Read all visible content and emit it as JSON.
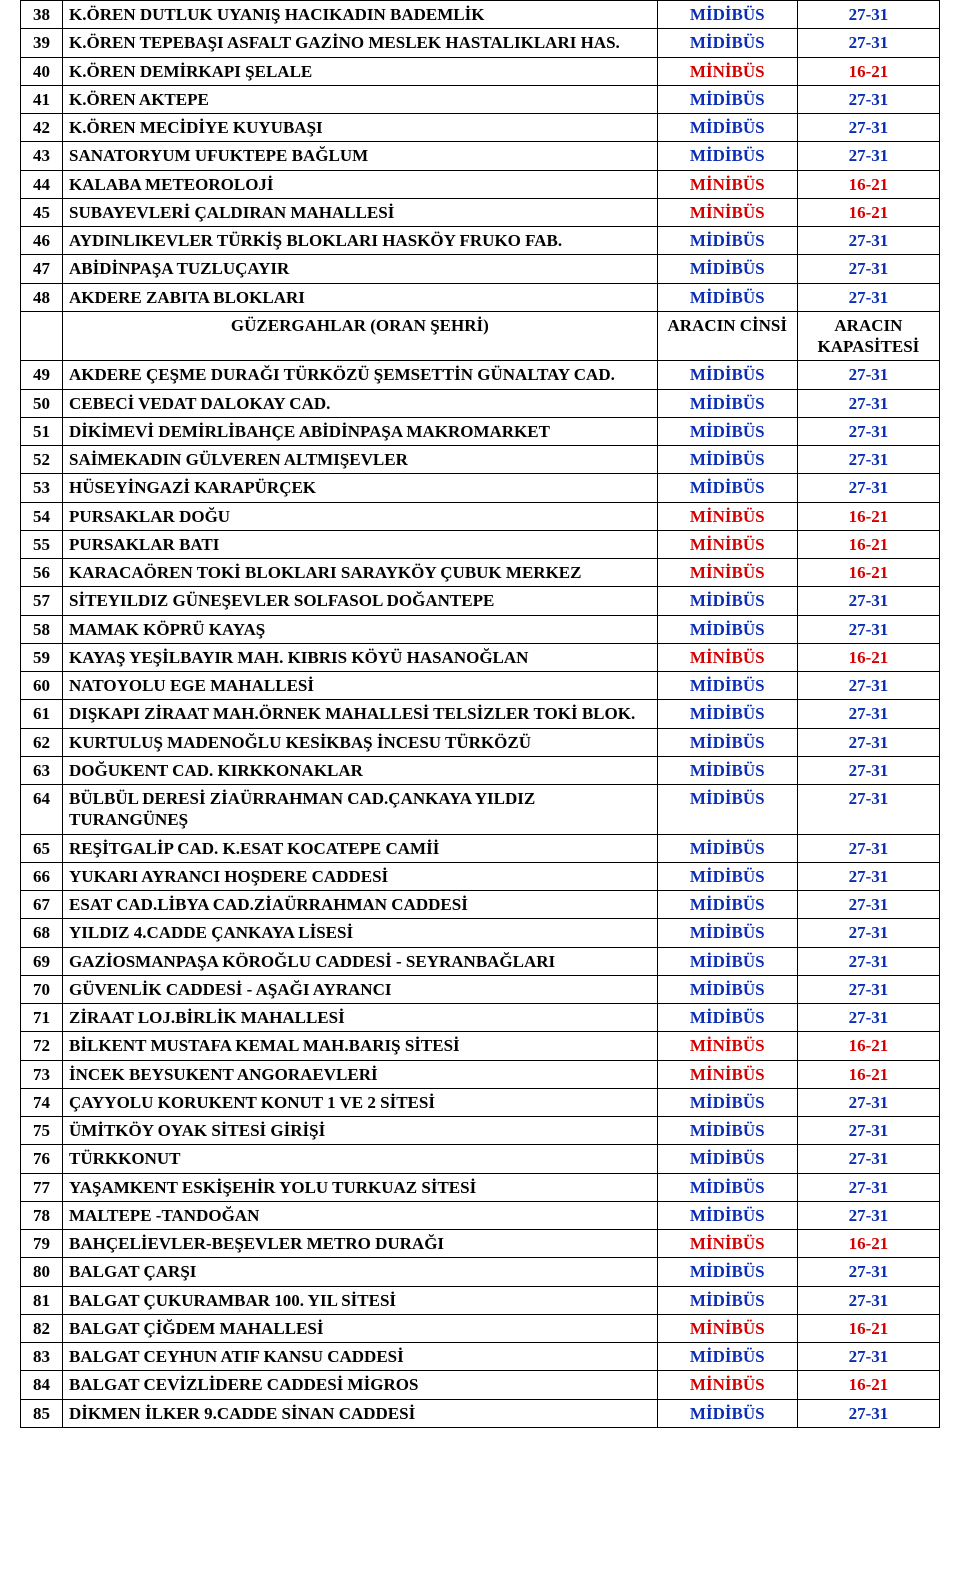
{
  "colors": {
    "border": "#000000",
    "text_black": "#000000",
    "text_blue": "#0a2db3",
    "text_red": "#d30000",
    "background": "#ffffff"
  },
  "typography": {
    "font_family": "Times New Roman",
    "font_size_pt": 13,
    "font_weight": "bold"
  },
  "vehicle_types": {
    "midibus": {
      "label": "MİDİBÜS",
      "capacity": "27-31",
      "color": "#0a2db3"
    },
    "minibus": {
      "label": "MİNİBÜS",
      "capacity": "16-21",
      "color": "#d30000"
    }
  },
  "section_header": {
    "route_header": "GÜZERGAHLAR (ORAN ŞEHRİ)",
    "type_header": "ARACIN CİNSİ",
    "capacity_header": "ARACIN KAPASİTESİ"
  },
  "rows": [
    {
      "num": "38",
      "route": "K.ÖREN DUTLUK UYANIŞ HACIKADIN BADEMLİK",
      "kind": "midibus"
    },
    {
      "num": "39",
      "route": "K.ÖREN TEPEBAŞI ASFALT GAZİNO MESLEK HASTALIKLARI HAS.",
      "kind": "midibus"
    },
    {
      "num": "40",
      "route": "K.ÖREN  DEMİRKAPI ŞELALE",
      "kind": "minibus"
    },
    {
      "num": "41",
      "route": "K.ÖREN AKTEPE",
      "kind": "midibus"
    },
    {
      "num": "42",
      "route": "K.ÖREN MECİDİYE KUYUBAŞI",
      "kind": "midibus"
    },
    {
      "num": "43",
      "route": "SANATORYUM UFUKTEPE BAĞLUM",
      "kind": "midibus"
    },
    {
      "num": "44",
      "route": "KALABA METEOROLOJİ",
      "kind": "minibus"
    },
    {
      "num": "45",
      "route": "SUBAYEVLERİ ÇALDIRAN MAHALLESİ",
      "kind": "minibus"
    },
    {
      "num": "46",
      "route": "AYDINLIKEVLER TÜRKİŞ BLOKLARI HASKÖY FRUKO FAB.",
      "kind": "midibus"
    },
    {
      "num": "47",
      "route": "ABİDİNPAŞA TUZLUÇAYIR",
      "kind": "midibus"
    },
    {
      "num": "48",
      "route": "AKDERE ZABITA BLOKLARI",
      "kind": "midibus"
    },
    {
      "header": true
    },
    {
      "num": "49",
      "route": "AKDERE ÇEŞME DURAĞI TÜRKÖZÜ ŞEMSETTİN GÜNALTAY CAD.",
      "kind": "midibus"
    },
    {
      "num": "50",
      "route": "CEBECİ VEDAT DALOKAY CAD.",
      "kind": "midibus"
    },
    {
      "num": "51",
      "route": "DİKİMEVİ DEMİRLİBAHÇE ABİDİNPAŞA MAKROMARKET",
      "kind": "midibus"
    },
    {
      "num": "52",
      "route": "SAİMEKADIN GÜLVEREN ALTMIŞEVLER",
      "kind": "midibus"
    },
    {
      "num": "53",
      "route": "HÜSEYİNGAZİ KARAPÜRÇEK",
      "kind": "midibus"
    },
    {
      "num": "54",
      "route": "PURSAKLAR DOĞU",
      "kind": "minibus"
    },
    {
      "num": "55",
      "route": "PURSAKLAR BATI",
      "kind": "minibus"
    },
    {
      "num": "56",
      "route": "KARACAÖREN TOKİ BLOKLARI SARAYKÖY ÇUBUK MERKEZ",
      "kind": "minibus"
    },
    {
      "num": "57",
      "route": "SİTEYILDIZ GÜNEŞEVLER SOLFASOL DOĞANTEPE",
      "kind": "midibus"
    },
    {
      "num": "58",
      "route": "MAMAK KÖPRÜ KAYAŞ",
      "kind": "midibus"
    },
    {
      "num": "59",
      "route": "KAYAŞ YEŞİLBAYIR MAH. KIBRIS KÖYÜ HASANOĞLAN",
      "kind": "minibus"
    },
    {
      "num": "60",
      "route": "NATOYOLU EGE MAHALLESİ",
      "kind": "midibus"
    },
    {
      "num": "61",
      "route": "DIŞKAPI ZİRAAT MAH.ÖRNEK MAHALLESİ TELSİZLER TOKİ BLOK.",
      "kind": "midibus"
    },
    {
      "num": "62",
      "route": "KURTULUŞ MADENOĞLU KESİKBAŞ İNCESU TÜRKÖZÜ",
      "kind": "midibus"
    },
    {
      "num": "63",
      "route": "DOĞUKENT CAD. KIRKKONAKLAR",
      "kind": "midibus"
    },
    {
      "num": "64",
      "route": "BÜLBÜL DERESİ ZİAÜRRAHMAN CAD.ÇANKAYA YILDIZ TURANGÜNEŞ",
      "kind": "midibus"
    },
    {
      "num": "65",
      "route": "REŞİTGALİP CAD. K.ESAT KOCATEPE CAMİİ",
      "kind": "midibus"
    },
    {
      "num": "66",
      "route": "YUKARI AYRANCI HOŞDERE CADDESİ",
      "kind": "midibus"
    },
    {
      "num": "67",
      "route": "ESAT CAD.LİBYA CAD.ZİAÜRRAHMAN CADDESİ",
      "kind": "midibus"
    },
    {
      "num": "68",
      "route": "YILDIZ 4.CADDE ÇANKAYA LİSESİ",
      "kind": "midibus"
    },
    {
      "num": "69",
      "route": "GAZİOSMANPAŞA KÖROĞLU CADDESİ - SEYRANBAĞLARI",
      "kind": "midibus"
    },
    {
      "num": "70",
      "route": "GÜVENLİK CADDESİ - AŞAĞI AYRANCI",
      "kind": "midibus"
    },
    {
      "num": "71",
      "route": "ZİRAAT LOJ.BİRLİK MAHALLESİ",
      "kind": "midibus"
    },
    {
      "num": "72",
      "route": "BİLKENT  MUSTAFA KEMAL MAH.BARIŞ SİTESİ",
      "kind": "minibus"
    },
    {
      "num": "73",
      "route": "İNCEK BEYSUKENT ANGORAEVLERİ",
      "kind": "minibus"
    },
    {
      "num": "74",
      "route": "ÇAYYOLU KORUKENT KONUT 1 VE 2 SİTESİ",
      "kind": "midibus"
    },
    {
      "num": "75",
      "route": "ÜMİTKÖY OYAK SİTESİ GİRİŞİ",
      "kind": "midibus"
    },
    {
      "num": "76",
      "route": "TÜRKKONUT",
      "kind": "midibus"
    },
    {
      "num": "77",
      "route": "YAŞAMKENT ESKİŞEHİR YOLU TURKUAZ SİTESİ",
      "kind": "midibus"
    },
    {
      "num": "78",
      "route": "MALTEPE -TANDOĞAN",
      "kind": "midibus"
    },
    {
      "num": "79",
      "route": "BAHÇELİEVLER-BEŞEVLER METRO DURAĞI",
      "kind": "minibus"
    },
    {
      "num": "80",
      "route": "BALGAT ÇARŞI",
      "kind": "midibus"
    },
    {
      "num": "81",
      "route": "BALGAT ÇUKURAMBAR 100. YIL SİTESİ",
      "kind": "midibus"
    },
    {
      "num": "82",
      "route": "BALGAT ÇİĞDEM MAHALLESİ",
      "kind": "minibus"
    },
    {
      "num": "83",
      "route": "BALGAT CEYHUN ATIF KANSU CADDESİ",
      "kind": "midibus"
    },
    {
      "num": "84",
      "route": "BALGAT  CEVİZLİDERE CADDESİ  MİGROS",
      "kind": "minibus"
    },
    {
      "num": "85",
      "route": "DİKMEN İLKER 9.CADDE SİNAN CADDESİ",
      "kind": "midibus"
    }
  ]
}
